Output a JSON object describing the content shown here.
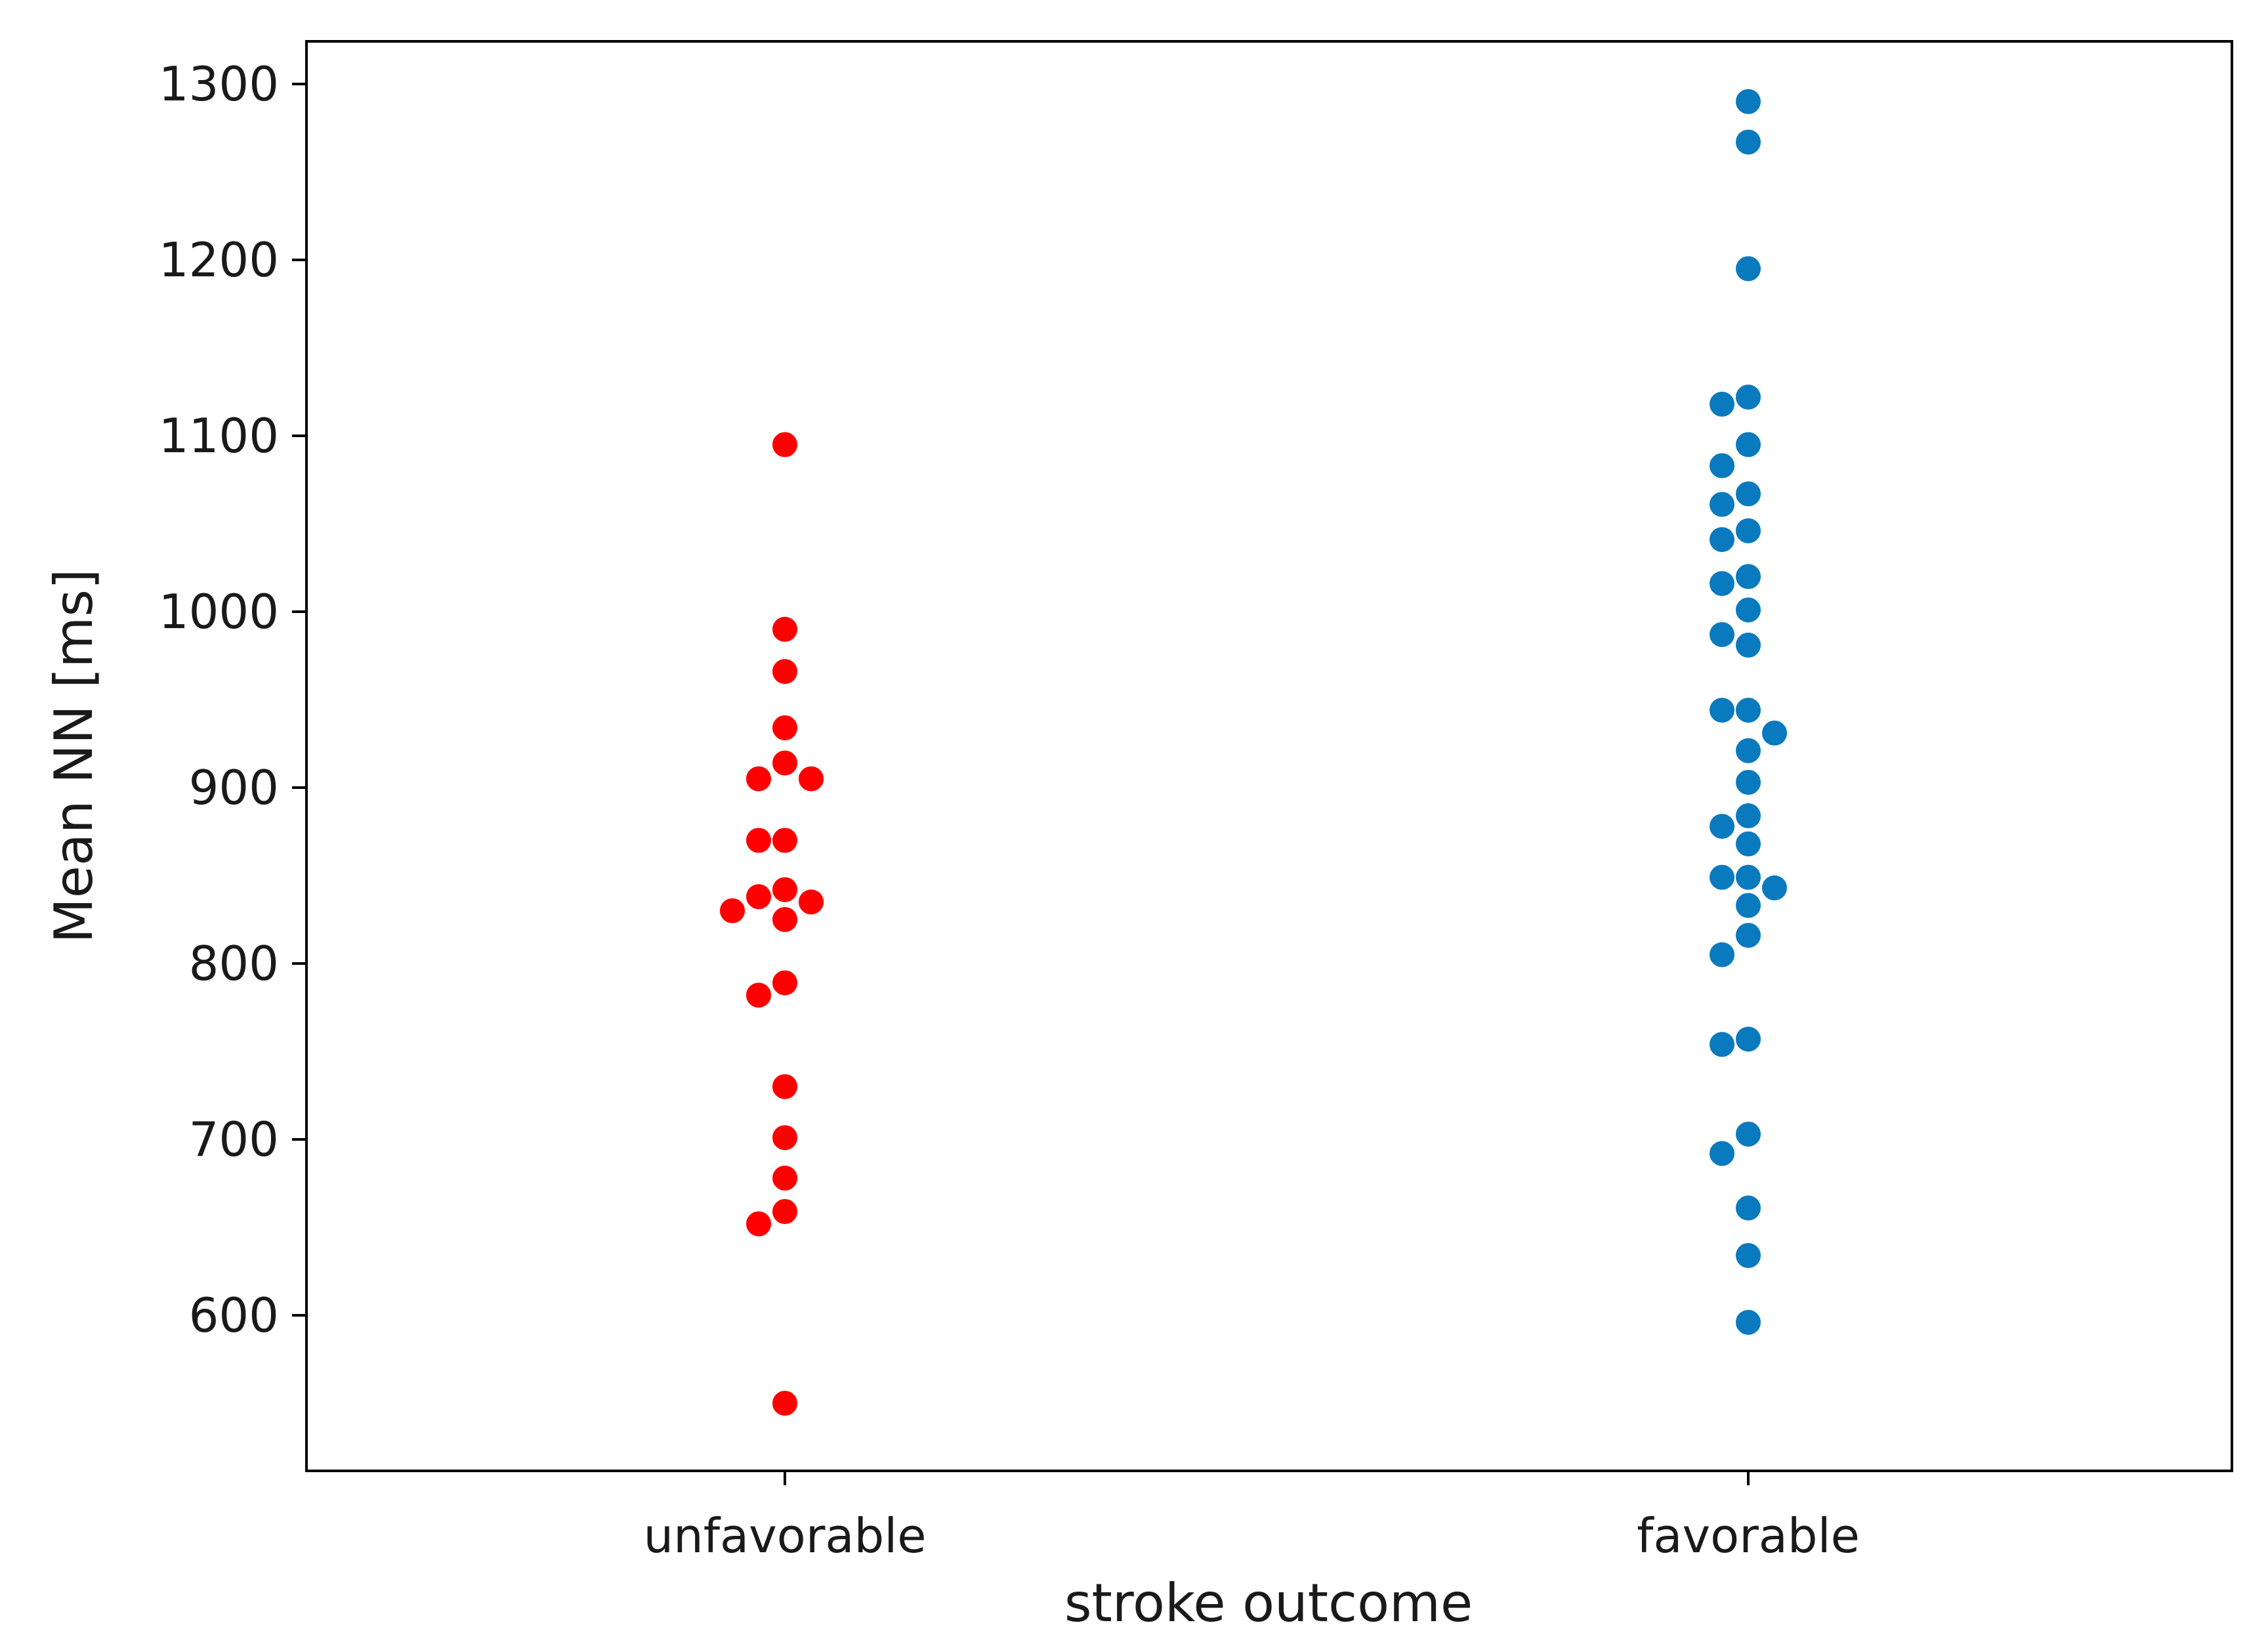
{
  "chart_data": {
    "type": "scatter",
    "title": "",
    "xlabel": "stroke outcome",
    "ylabel": "Mean NN [ms]",
    "categories": [
      "unfavorable",
      "favorable"
    ],
    "y_ticks": [
      600,
      700,
      800,
      900,
      1000,
      1100,
      1200,
      1300
    ],
    "ylim": [
      510,
      1325
    ],
    "grid": false,
    "legend": "none",
    "series": [
      {
        "category": "unfavorable",
        "color": "#ff0000",
        "values": [
          1095,
          990,
          966,
          934,
          914,
          905,
          905,
          870,
          870,
          842,
          838,
          835,
          830,
          825,
          789,
          782,
          730,
          701,
          678,
          659,
          652,
          550
        ]
      },
      {
        "category": "favorable",
        "color": "#0a7abf",
        "values": [
          1290,
          1267,
          1195,
          1122,
          1118,
          1095,
          1083,
          1067,
          1061,
          1046,
          1041,
          1020,
          1016,
          1001,
          987,
          981,
          944,
          944,
          931,
          921,
          903,
          884,
          878,
          868,
          849,
          849,
          843,
          833,
          816,
          805,
          757,
          754,
          703,
          692,
          661,
          634,
          596
        ]
      }
    ]
  }
}
